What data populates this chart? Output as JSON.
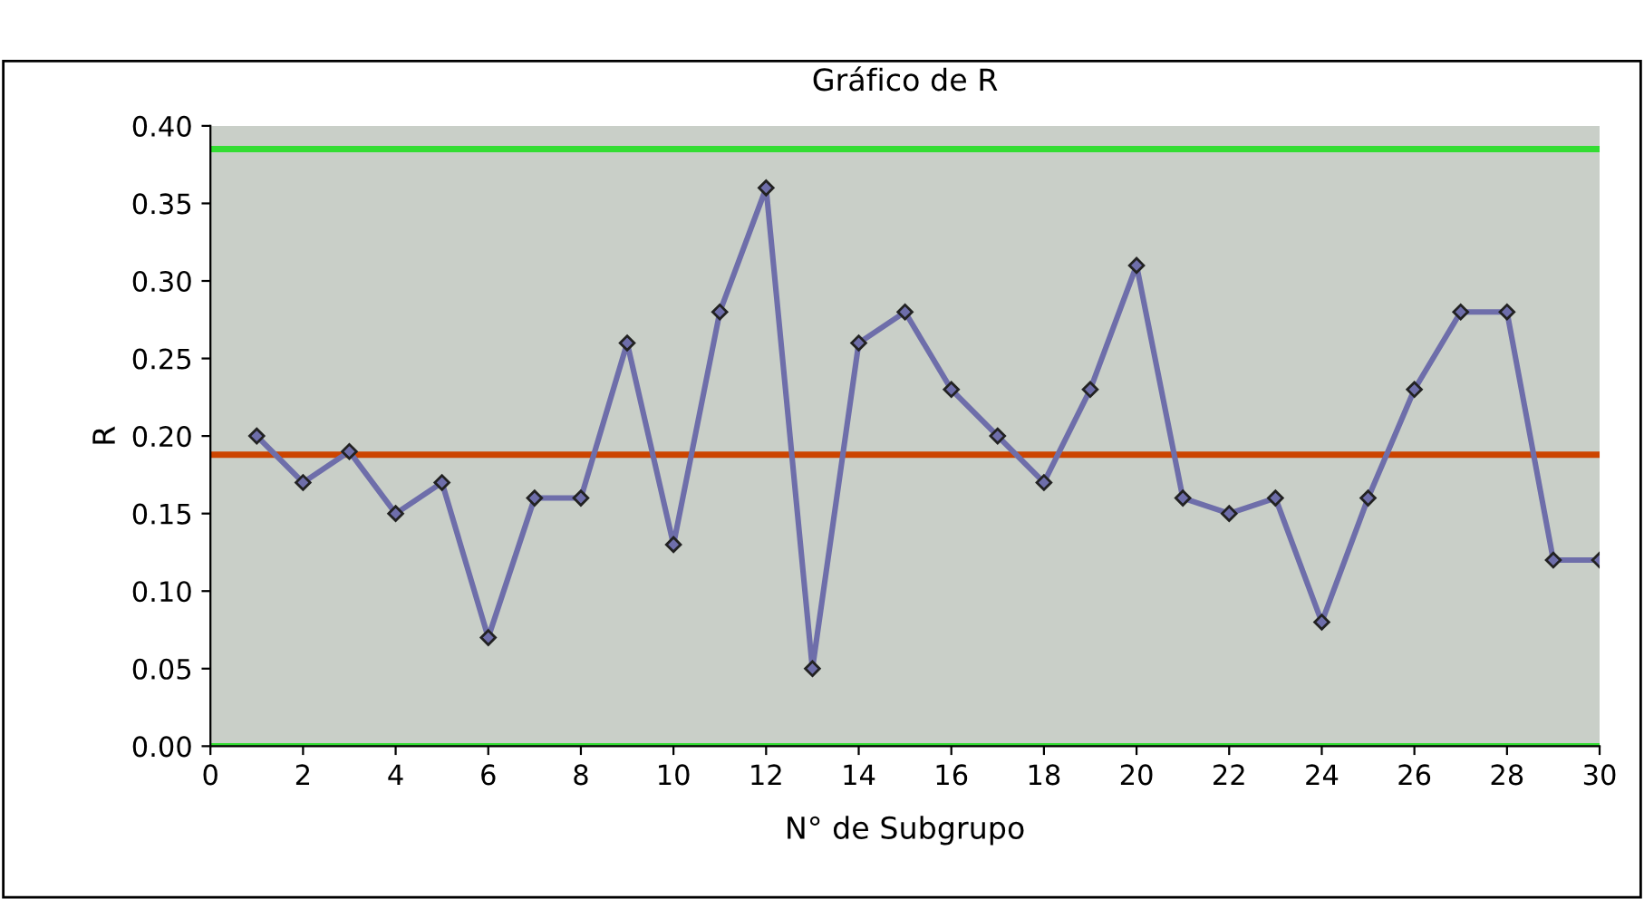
{
  "chart_data": {
    "type": "line",
    "title": "Gráfico de R",
    "xlabel": "N° de Subgrupo",
    "ylabel": "R",
    "x": [
      1,
      2,
      3,
      4,
      5,
      6,
      7,
      8,
      9,
      10,
      11,
      12,
      13,
      14,
      15,
      16,
      17,
      18,
      19,
      20,
      21,
      22,
      23,
      24,
      25,
      26,
      27,
      28,
      29,
      30
    ],
    "series": [
      {
        "color": "#6e6eaa",
        "values": [
          0.2,
          0.17,
          0.19,
          0.15,
          0.17,
          0.07,
          0.16,
          0.16,
          0.26,
          0.13,
          0.28,
          0.36,
          0.05,
          0.26,
          0.28,
          0.23,
          0.2,
          0.17,
          0.23,
          0.31,
          0.16,
          0.15,
          0.16,
          0.08,
          0.16,
          0.23,
          0.28,
          0.28,
          0.12,
          0.12
        ]
      }
    ],
    "marker": "diamond",
    "line_style": "solid",
    "xlim": [
      0,
      30
    ],
    "xticks": [
      0,
      2,
      4,
      6,
      8,
      10,
      12,
      14,
      16,
      18,
      20,
      22,
      24,
      26,
      28,
      30
    ],
    "ylim": [
      0,
      0.4
    ],
    "yticks": [
      {
        "value": 0,
        "label": "0.00"
      },
      {
        "value": 0.05,
        "label": "0.05"
      },
      {
        "value": 0.1,
        "label": "0.10"
      },
      {
        "value": 0.15,
        "label": "0.15"
      },
      {
        "value": 0.2,
        "label": "0.20"
      },
      {
        "value": 0.25,
        "label": "0.25"
      },
      {
        "value": 0.3,
        "label": "0.30"
      },
      {
        "value": 0.35,
        "label": "0.35"
      },
      {
        "value": 0.4,
        "label": "0.40"
      }
    ],
    "ref_lines": [
      {
        "axis": "y",
        "value": 0.385,
        "color": "#33dd33"
      },
      {
        "axis": "y",
        "value": 0.188,
        "color": "#cc4400"
      },
      {
        "axis": "y",
        "value": 0.0,
        "color": "#33dd33"
      }
    ],
    "grid": false
  }
}
